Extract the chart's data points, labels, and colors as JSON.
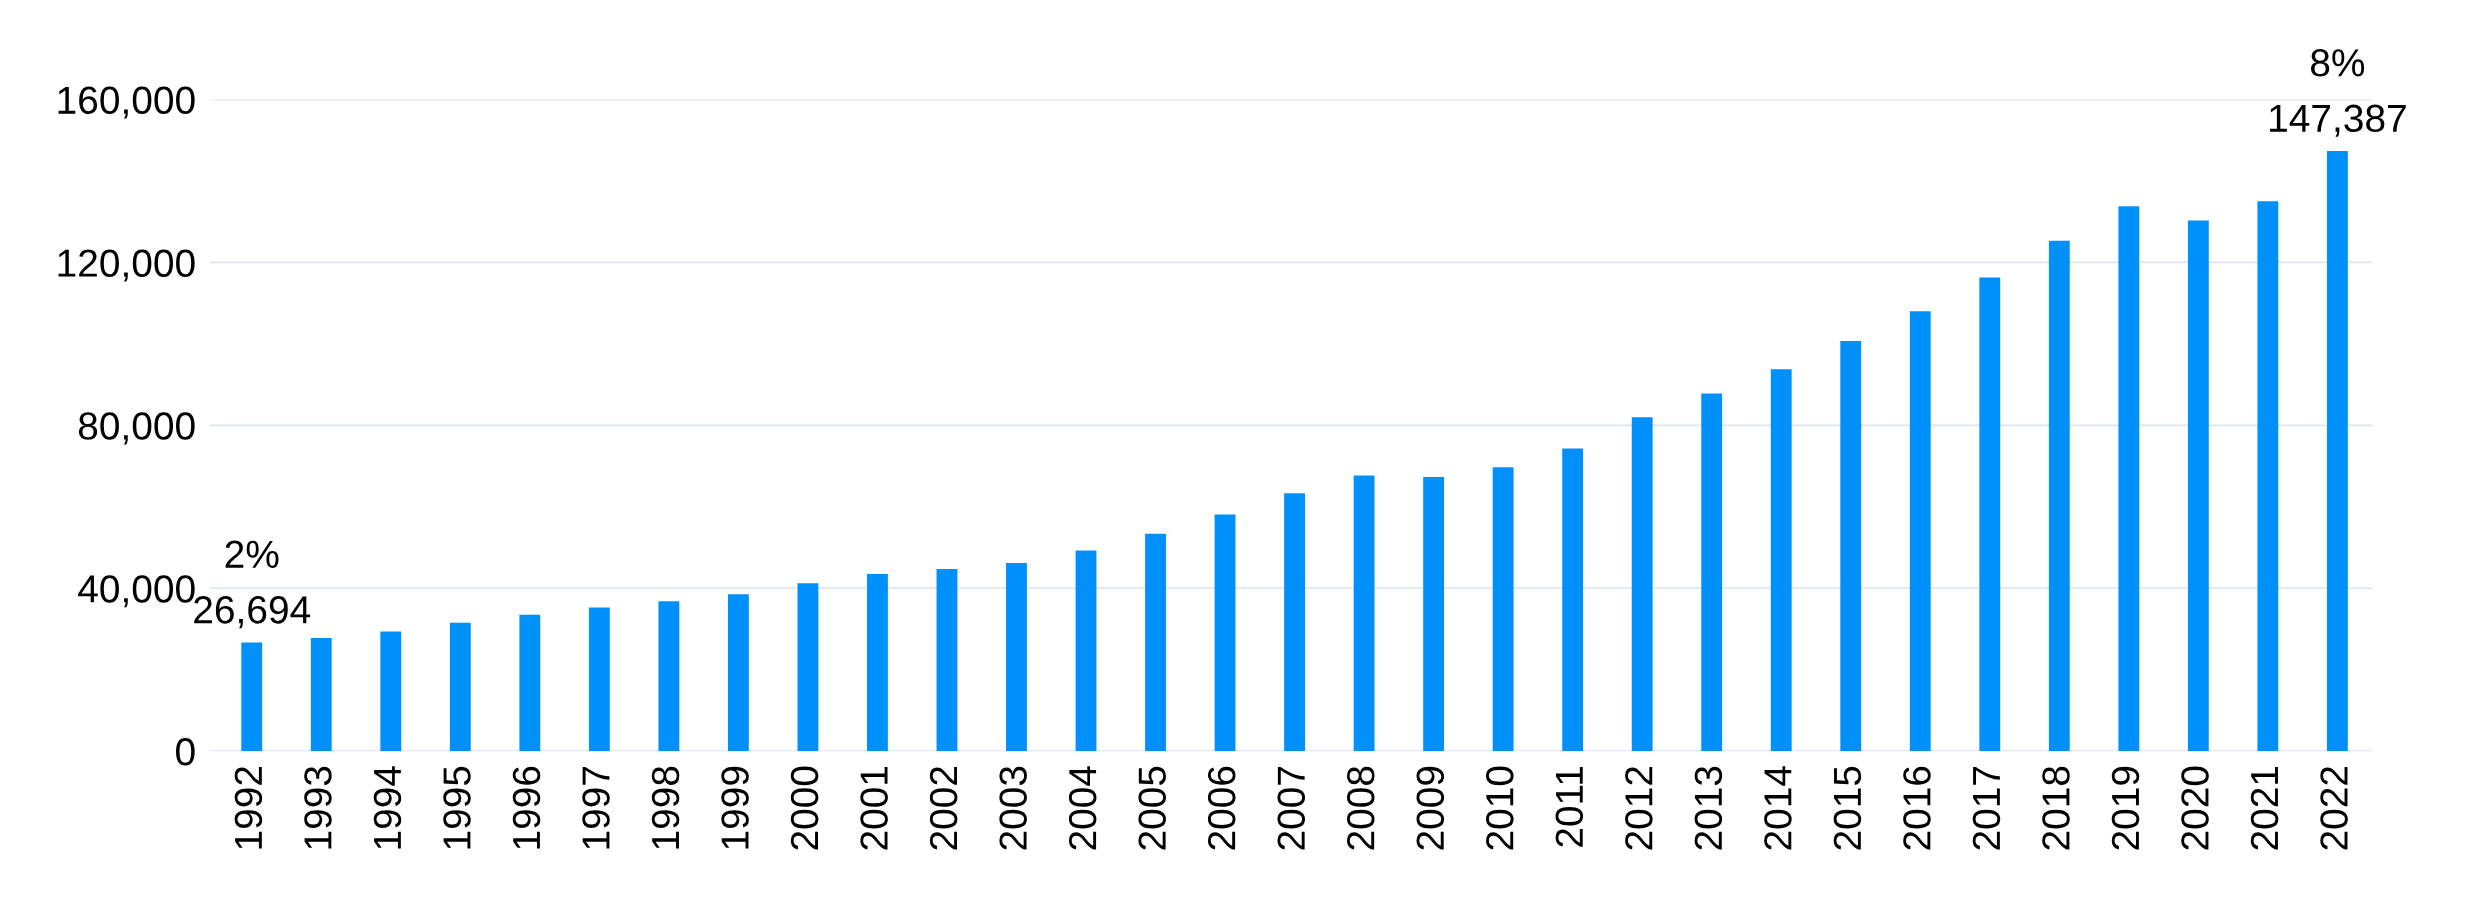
{
  "chart_data": {
    "type": "bar",
    "categories": [
      "1992",
      "1993",
      "1994",
      "1995",
      "1996",
      "1997",
      "1998",
      "1999",
      "2000",
      "2001",
      "2002",
      "2003",
      "2004",
      "2005",
      "2006",
      "2007",
      "2008",
      "2009",
      "2010",
      "2011",
      "2012",
      "2013",
      "2014",
      "2015",
      "2016",
      "2017",
      "2018",
      "2019",
      "2020",
      "2021",
      "2022"
    ],
    "values": [
      26694,
      27800,
      29400,
      31500,
      33500,
      35300,
      36800,
      38500,
      41200,
      43500,
      44700,
      46200,
      49300,
      53400,
      58100,
      63300,
      67700,
      67300,
      69700,
      74300,
      82000,
      87800,
      93800,
      100700,
      108000,
      116300,
      125300,
      133800,
      130300,
      135000,
      147387
    ],
    "value_labels": [
      "26,694",
      null,
      null,
      null,
      null,
      null,
      null,
      null,
      null,
      null,
      null,
      null,
      null,
      null,
      null,
      null,
      null,
      null,
      null,
      null,
      null,
      null,
      null,
      null,
      null,
      null,
      null,
      null,
      null,
      null,
      "147,387"
    ],
    "annotations": [
      {
        "text": "2%",
        "x": "1992",
        "y": 26694
      },
      {
        "text": "8%",
        "x": "2022",
        "y": 147387
      }
    ],
    "color": "#0090fa",
    "ylim": [
      0,
      160000
    ],
    "yticks": [
      {
        "value": 0,
        "label": "0"
      },
      {
        "value": 40000,
        "label": "40,000"
      },
      {
        "value": 80000,
        "label": "80,000"
      },
      {
        "value": 120000,
        "label": "120,000"
      },
      {
        "value": 160000,
        "label": "160,000"
      }
    ],
    "grid": "y"
  }
}
